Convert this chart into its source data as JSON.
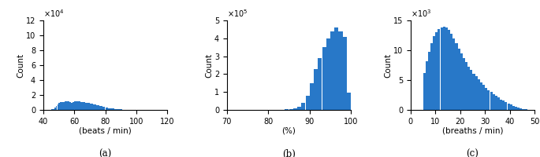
{
  "plot_a": {
    "xlabel": "(beats / min)",
    "ylabel": "Count",
    "label": "(a)",
    "xlim": [
      40,
      120
    ],
    "ylim": [
      0,
      120000
    ],
    "yticks": [
      0,
      20000,
      40000,
      60000,
      80000,
      100000,
      120000
    ],
    "ytick_labels": [
      "0",
      "2",
      "4",
      "6",
      "8",
      "10",
      "12"
    ],
    "exp_label": "10^4",
    "bar_color": "#2878c8",
    "bins_start": 40,
    "bins_step": 1,
    "bar_heights": [
      20,
      50,
      100,
      200,
      400,
      800,
      1500,
      3000,
      5500,
      7500,
      9000,
      10500,
      11000,
      10500,
      11200,
      11800,
      11500,
      11000,
      10000,
      10500,
      11200,
      11600,
      11800,
      11500,
      11000,
      10600,
      10200,
      9800,
      9400,
      9000,
      8500,
      8000,
      7500,
      7000,
      6500,
      6000,
      5500,
      5000,
      4500,
      4000,
      3500,
      3000,
      2600,
      2200,
      1900,
      1600,
      1300,
      1050,
      850,
      680,
      530,
      410,
      310,
      240,
      180,
      140,
      100,
      75,
      55,
      40,
      30,
      22,
      15,
      11,
      8,
      6,
      4,
      3,
      2,
      1,
      1,
      1,
      0,
      0,
      0,
      0,
      0,
      0,
      0,
      0
    ]
  },
  "plot_b": {
    "xlabel": "(%)",
    "ylabel": "Count",
    "label": "(b)",
    "xlim": [
      70,
      100
    ],
    "ylim": [
      0,
      500000
    ],
    "yticks": [
      0,
      100000,
      200000,
      300000,
      400000,
      500000
    ],
    "ytick_labels": [
      "0",
      "1",
      "2",
      "3",
      "4",
      "5"
    ],
    "exp_label": "10^5",
    "bar_color": "#2878c8",
    "bins_start": 70,
    "bins_step": 1,
    "bar_heights": [
      300,
      200,
      150,
      120,
      100,
      100,
      100,
      120,
      150,
      200,
      300,
      500,
      800,
      1400,
      2500,
      5000,
      9000,
      18000,
      40000,
      80000,
      150000,
      230000,
      290000,
      350000,
      400000,
      440000,
      460000,
      440000,
      410000,
      95000
    ]
  },
  "plot_c": {
    "xlabel": "(breaths / min)",
    "ylabel": "Count",
    "label": "(c)",
    "xlim": [
      0,
      50
    ],
    "ylim": [
      0,
      15000
    ],
    "yticks": [
      0,
      5000,
      10000,
      15000
    ],
    "ytick_labels": [
      "0",
      "5",
      "10",
      "15"
    ],
    "exp_label": "10^3",
    "bar_color": "#2878c8",
    "bins_start": 0,
    "bins_step": 1,
    "bar_heights": [
      0,
      0,
      0,
      0,
      0,
      6200,
      8200,
      9800,
      11200,
      12400,
      13000,
      13500,
      13800,
      14000,
      13800,
      13400,
      12800,
      12000,
      11200,
      10300,
      9500,
      8700,
      8000,
      7300,
      6700,
      6100,
      5600,
      5100,
      4600,
      4150,
      3750,
      3350,
      2980,
      2650,
      2330,
      2040,
      1770,
      1520,
      1290,
      1080,
      880,
      700,
      540,
      390,
      270,
      170,
      95,
      45,
      18,
      6
    ]
  }
}
